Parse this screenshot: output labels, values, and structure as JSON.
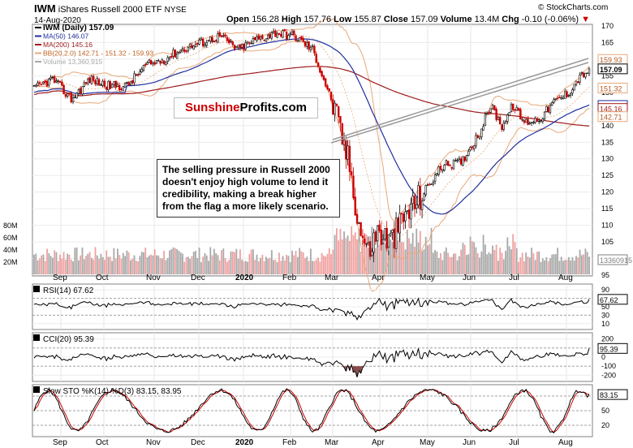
{
  "header": {
    "symbol": "IWM",
    "name": "iShares Russell 2000 ETF",
    "exchange": "NYSE",
    "date": "14-Aug-2020",
    "open_label": "Open",
    "open": "156.28",
    "high_label": "High",
    "high": "157.76",
    "low_label": "Low",
    "low": "155.87",
    "close_label": "Close",
    "close": "157.09",
    "volume_label": "Volume",
    "volume": "13.4M",
    "chg_label": "Chg",
    "chg": "-0.10 (-0.06%)",
    "watermark": "© StockCharts.com"
  },
  "brand": {
    "part1": "Sunshine",
    "part2": "Profits.com"
  },
  "annotation": "The selling pressure in Russell 2000 doesn't enjoy high volume to lend it credibility, making a break higher from the flag a more likely scenario.",
  "colors": {
    "up": "#000000",
    "down": "#cc0000",
    "ma50": "#1f2f9e",
    "ma200": "#9e1b1b",
    "bb": "#e8a878",
    "vol_up": "#a8a8a8",
    "vol_down": "#f0a0a0",
    "brand_red": "#cc0000"
  },
  "chart_data": [
    {
      "type": "candlestick",
      "title": "IWM (Daily) 157.09",
      "legend": [
        {
          "label": "IWM (Daily) 157.09",
          "color": "#000000"
        },
        {
          "label": "MA(50) 146.07",
          "color": "#1f2f9e"
        },
        {
          "label": "MA(200) 145.16",
          "color": "#9e1b1b"
        },
        {
          "label": "BB(20,2.0) 142.71 - 151.32 - 159.93",
          "color": "#e8a878"
        },
        {
          "label": "Volume 13,360,915",
          "color": "#a8a8a8"
        }
      ],
      "y_ticks": [
        95,
        100,
        105,
        110,
        115,
        120,
        125,
        130,
        135,
        140,
        145,
        150,
        155,
        160,
        165,
        170
      ],
      "ylim": [
        95,
        170
      ],
      "volume_ticks": [
        "20M",
        "40M",
        "60M",
        "80M"
      ],
      "x_labels": [
        "Sep",
        "Oct",
        "Nov",
        "Dec",
        "2020",
        "Feb",
        "Mar",
        "Apr",
        "May",
        "Jun",
        "Jul",
        "Aug"
      ],
      "price_tags": [
        {
          "label": "159.93",
          "value": 159.93,
          "color": "#e8a878"
        },
        {
          "label": "157.09",
          "value": 157.09,
          "color": "#000000"
        },
        {
          "label": "151.32",
          "value": 151.32,
          "color": "#e8a878"
        },
        {
          "label": "146.07",
          "value": 146.07,
          "color": "#1f2f9e"
        },
        {
          "label": "145.16",
          "value": 145.16,
          "color": "#9e1b1b"
        },
        {
          "label": "142.71",
          "value": 142.71,
          "color": "#e8a878"
        },
        {
          "label": "13360915",
          "value": 13.36,
          "color": "#808080"
        }
      ],
      "close_anchors": [
        [
          0,
          151
        ],
        [
          10,
          154
        ],
        [
          20,
          148
        ],
        [
          30,
          154
        ],
        [
          40,
          152
        ],
        [
          50,
          152
        ],
        [
          60,
          158
        ],
        [
          70,
          160
        ],
        [
          80,
          163
        ],
        [
          90,
          165
        ],
        [
          100,
          167
        ],
        [
          110,
          163
        ],
        [
          120,
          166
        ],
        [
          130,
          168
        ],
        [
          140,
          167
        ],
        [
          150,
          163
        ],
        [
          160,
          148
        ],
        [
          170,
          128
        ],
        [
          175,
          110
        ],
        [
          180,
          102
        ],
        [
          185,
          108
        ],
        [
          192,
          105
        ],
        [
          200,
          113
        ],
        [
          210,
          120
        ],
        [
          220,
          128
        ],
        [
          230,
          129
        ],
        [
          240,
          138
        ],
        [
          246,
          146
        ],
        [
          252,
          140
        ],
        [
          258,
          146
        ],
        [
          264,
          141
        ],
        [
          272,
          142
        ],
        [
          280,
          147
        ],
        [
          288,
          150
        ],
        [
          293,
          154
        ],
        [
          299,
          157
        ]
      ]
    },
    {
      "type": "line",
      "title": "RSI(14) 67.62",
      "value": 67.62,
      "y_ticks": [
        10,
        30,
        50,
        70,
        90
      ],
      "ylim": [
        0,
        100
      ]
    },
    {
      "type": "area",
      "title": "CCI(20) 95.39",
      "value": 95.39,
      "y_ticks": [
        -200,
        -100,
        0,
        100,
        200
      ],
      "ylim": [
        -250,
        250
      ]
    },
    {
      "type": "line",
      "title": "Slow STO %K(14) %D(3) 83.15, 83.95",
      "k": 83.15,
      "d": 83.95,
      "y_ticks": [
        20,
        50,
        80
      ],
      "ylim": [
        0,
        100
      ]
    }
  ]
}
